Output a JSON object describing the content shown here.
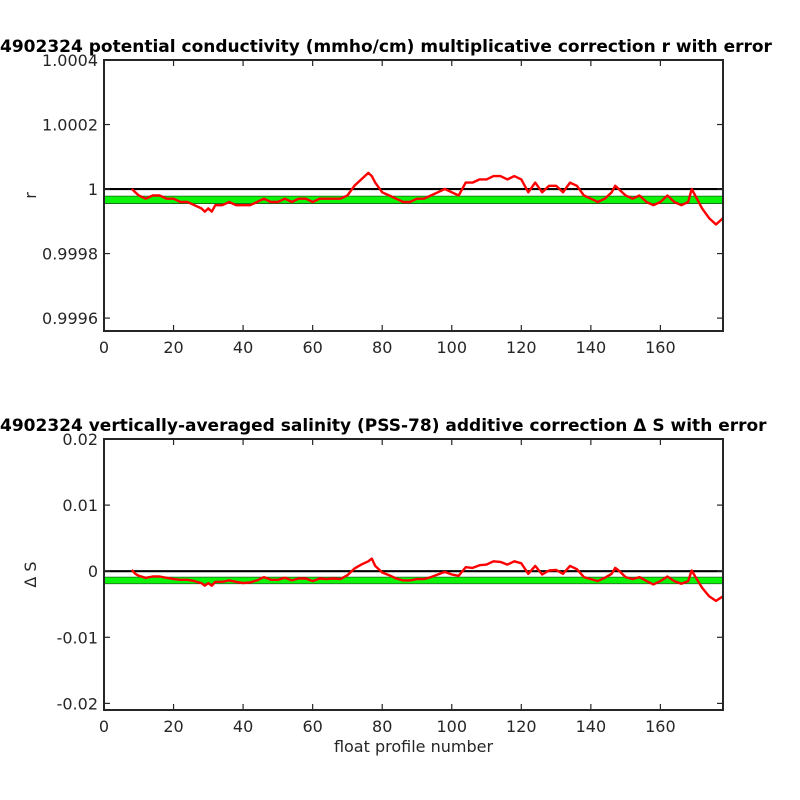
{
  "chart_data": [
    {
      "type": "line",
      "title": "4902324 potential conductivity (mmho/cm) multiplicative correction r with error",
      "xlabel": "",
      "ylabel": "r",
      "xlim": [
        0,
        178
      ],
      "ylim": [
        0.99956,
        1.0004
      ],
      "xticks": [
        0,
        20,
        40,
        60,
        80,
        100,
        120,
        140,
        160
      ],
      "yticks": [
        0.9996,
        0.9998,
        1,
        1.0002,
        1.0004
      ],
      "ytick_labels": [
        "0.9996",
        "0.9998",
        "1",
        "1.0002",
        "1.0004"
      ],
      "grid": false,
      "reference_line": {
        "y": 1,
        "color": "#000000"
      },
      "error_band": {
        "low": 0.999955,
        "high": 0.999978,
        "color": "#00ff00"
      },
      "series": [
        {
          "color": "#ff0000",
          "x": [
            8,
            9,
            10,
            12,
            14,
            16,
            18,
            20,
            22,
            24,
            26,
            28,
            29,
            30,
            31,
            32,
            34,
            36,
            38,
            40,
            42,
            44,
            46,
            48,
            50,
            52,
            54,
            56,
            58,
            60,
            62,
            64,
            66,
            68,
            70,
            72,
            74,
            76,
            77,
            78,
            80,
            82,
            84,
            86,
            88,
            90,
            92,
            94,
            96,
            98,
            100,
            102,
            104,
            106,
            108,
            110,
            112,
            114,
            116,
            118,
            120,
            122,
            124,
            126,
            128,
            130,
            132,
            134,
            136,
            138,
            140,
            142,
            144,
            146,
            147,
            148,
            150,
            152,
            154,
            156,
            158,
            160,
            162,
            164,
            166,
            168,
            169,
            170,
            172,
            174,
            176,
            178
          ],
          "y": [
            1.0,
            0.99999,
            0.99998,
            0.99997,
            0.99998,
            0.99998,
            0.99997,
            0.99997,
            0.99996,
            0.99996,
            0.99995,
            0.99994,
            0.99993,
            0.99994,
            0.99993,
            0.99995,
            0.99995,
            0.99996,
            0.99995,
            0.99995,
            0.99995,
            0.99996,
            0.99997,
            0.99996,
            0.99996,
            0.99997,
            0.99996,
            0.99997,
            0.99997,
            0.99996,
            0.99997,
            0.99997,
            0.99997,
            0.99997,
            0.99998,
            1.00001,
            1.00003,
            1.00005,
            1.00004,
            1.00002,
            0.99999,
            0.99998,
            0.99997,
            0.99996,
            0.99996,
            0.99997,
            0.99997,
            0.99998,
            0.99999,
            1.0,
            0.99999,
            0.99998,
            1.00002,
            1.00002,
            1.00003,
            1.00003,
            1.00004,
            1.00004,
            1.00003,
            1.00004,
            1.00003,
            0.99999,
            1.00002,
            0.99999,
            1.00001,
            1.00001,
            0.99999,
            1.00002,
            1.00001,
            0.99998,
            0.99997,
            0.99996,
            0.99997,
            0.99999,
            1.00001,
            1.0,
            0.99998,
            0.99997,
            0.99998,
            0.99996,
            0.99995,
            0.99996,
            0.99998,
            0.99996,
            0.99995,
            0.99996,
            1.0,
            0.99998,
            0.99994,
            0.99991,
            0.99989,
            0.99991
          ]
        }
      ]
    },
    {
      "type": "line",
      "title": "4902324 vertically-averaged salinity (PSS-78) additive correction Δ S with error",
      "xlabel": "float profile number",
      "ylabel": "Δ S",
      "xlim": [
        0,
        178
      ],
      "ylim": [
        -0.021,
        0.02
      ],
      "xticks": [
        0,
        20,
        40,
        60,
        80,
        100,
        120,
        140,
        160
      ],
      "yticks": [
        -0.02,
        -0.01,
        0,
        0.01,
        0.02
      ],
      "ytick_labels": [
        "-0.02",
        "-0.01",
        "0",
        "0.01",
        "0.02"
      ],
      "grid": false,
      "reference_line": {
        "y": 0,
        "color": "#000000"
      },
      "error_band": {
        "low": -0.0019,
        "high": -0.0009,
        "color": "#00ff00"
      },
      "series": [
        {
          "color": "#ff0000",
          "x": [
            8,
            9,
            10,
            12,
            14,
            16,
            18,
            20,
            22,
            24,
            26,
            28,
            29,
            30,
            31,
            32,
            34,
            36,
            38,
            40,
            42,
            44,
            46,
            48,
            50,
            52,
            54,
            56,
            58,
            60,
            62,
            64,
            66,
            68,
            70,
            72,
            74,
            76,
            77,
            78,
            80,
            82,
            84,
            86,
            88,
            90,
            92,
            94,
            96,
            98,
            100,
            102,
            104,
            106,
            108,
            110,
            112,
            114,
            116,
            118,
            120,
            122,
            124,
            126,
            128,
            130,
            132,
            134,
            136,
            138,
            140,
            142,
            144,
            146,
            147,
            148,
            150,
            152,
            154,
            156,
            158,
            160,
            162,
            164,
            166,
            168,
            169,
            170,
            172,
            174,
            176,
            178
          ],
          "y": [
            0.0002,
            -0.0004,
            -0.0007,
            -0.001,
            -0.0008,
            -0.0008,
            -0.001,
            -0.0012,
            -0.0013,
            -0.0013,
            -0.0015,
            -0.0018,
            -0.0022,
            -0.0018,
            -0.0022,
            -0.0016,
            -0.0016,
            -0.0014,
            -0.0016,
            -0.0018,
            -0.0017,
            -0.0014,
            -0.0009,
            -0.0013,
            -0.0013,
            -0.001,
            -0.0014,
            -0.0011,
            -0.0011,
            -0.0015,
            -0.0011,
            -0.0012,
            -0.0011,
            -0.0012,
            -0.0006,
            0.0004,
            0.001,
            0.0015,
            0.0019,
            0.0008,
            -0.0002,
            -0.0006,
            -0.0011,
            -0.0014,
            -0.0014,
            -0.0012,
            -0.0012,
            -0.0009,
            -0.0005,
            -0.0001,
            -0.0005,
            -0.0007,
            0.0006,
            0.0005,
            0.0009,
            0.001,
            0.0015,
            0.0014,
            0.001,
            0.0015,
            0.0012,
            -0.0004,
            0.0008,
            -0.0005,
            0.0001,
            0.0002,
            -0.0004,
            0.0008,
            0.0003,
            -0.0009,
            -0.0012,
            -0.0015,
            -0.001,
            -0.0004,
            0.0005,
            0.0001,
            -0.0009,
            -0.0012,
            -0.0009,
            -0.0015,
            -0.002,
            -0.0015,
            -0.0008,
            -0.0015,
            -0.0019,
            -0.0015,
            0.0001,
            -0.0008,
            -0.0025,
            -0.0038,
            -0.0045,
            -0.0038
          ]
        }
      ]
    }
  ]
}
